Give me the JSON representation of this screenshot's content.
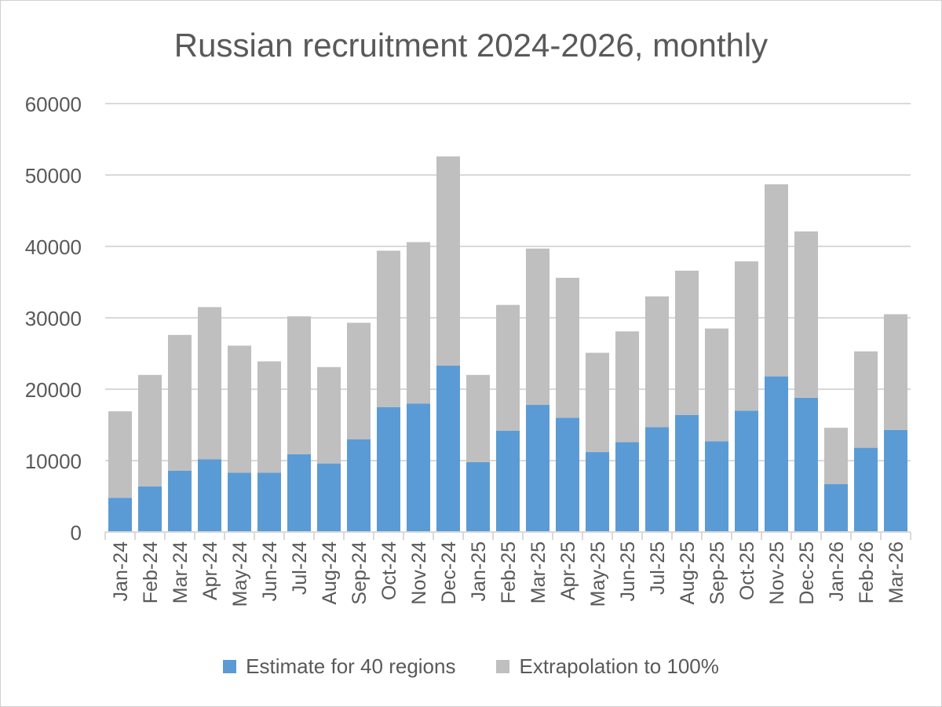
{
  "colors": {
    "estimate": "#5b9bd5",
    "extrapolation": "#bfbfbf",
    "gridline": "#d9d9d9",
    "text": "#595959"
  },
  "chart_data": {
    "type": "bar",
    "stacked": true,
    "title": "Russian recruitment 2024-2026, monthly",
    "xlabel": "",
    "ylabel": "",
    "ylim": [
      0,
      60000
    ],
    "yticks": [
      0,
      10000,
      20000,
      30000,
      40000,
      50000,
      60000
    ],
    "grid": true,
    "legend_position": "bottom",
    "categories": [
      "Jan-24",
      "Feb-24",
      "Mar-24",
      "Apr-24",
      "May-24",
      "Jun-24",
      "Jul-24",
      "Aug-24",
      "Sep-24",
      "Oct-24",
      "Nov-24",
      "Dec-24",
      "Jan-25",
      "Feb-25",
      "Mar-25",
      "Apr-25",
      "May-25",
      "Jun-25",
      "Jul-25",
      "Aug-25",
      "Sep-25",
      "Oct-25",
      "Nov-25",
      "Dec-25",
      "Jan-26",
      "Feb-26",
      "Mar-26"
    ],
    "series": [
      {
        "name": "Estimate for 40 regions",
        "color": "#5b9bd5",
        "values": [
          4800,
          6400,
          8600,
          10200,
          8300,
          8300,
          10900,
          9600,
          13000,
          17500,
          18000,
          23300,
          9800,
          14200,
          17800,
          16000,
          11200,
          12600,
          14700,
          16400,
          12700,
          17000,
          21800,
          18800,
          6700,
          11800,
          14300
        ]
      },
      {
        "name": "Extrapolation to 100%",
        "color": "#bfbfbf",
        "values": [
          12100,
          15600,
          19000,
          21300,
          17800,
          15600,
          19300,
          13500,
          16300,
          21900,
          22600,
          29300,
          12200,
          17600,
          21900,
          19600,
          13900,
          15500,
          18300,
          20200,
          15800,
          20900,
          26900,
          23300,
          7900,
          13500,
          16200
        ]
      }
    ]
  }
}
